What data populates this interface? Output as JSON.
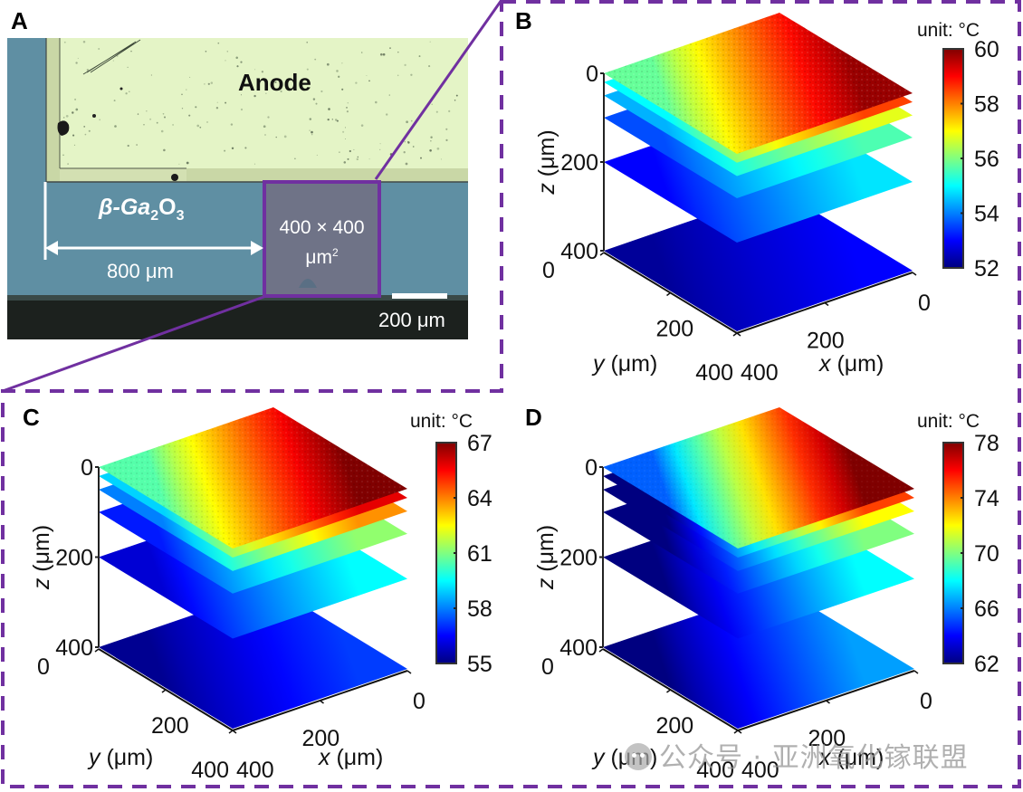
{
  "figure": {
    "panel_labels": [
      "A",
      "B",
      "C",
      "D"
    ],
    "accent_color": "#7030a0"
  },
  "panel_a": {
    "anode_label": "Anode",
    "material_label_prefix": "β-Ga",
    "material_sub1": "2",
    "material_mid": "O",
    "material_sub2": "3",
    "distance_label": "800 μm",
    "roi_label_line1": "400 × 400",
    "roi_label_line2": "μm",
    "roi_label_sup": "2",
    "scalebar_label": "200 μm",
    "colors": {
      "substrate": "#5f8fa3",
      "anode": "#e6f5c8",
      "anode_border": "#c9d7a6",
      "dark_edge": "#1a1f1c",
      "roi_fill": "#6f7387"
    }
  },
  "chart_data": [
    {
      "type": "heatmap",
      "panel": "B",
      "subtype": "3d-stacked-slices",
      "colormap": "jet",
      "colorbar_title": "unit: °C",
      "clim": [
        52,
        60
      ],
      "colorbar_ticks": [
        "60",
        "58",
        "56",
        "54",
        "52"
      ],
      "colorbar_tick_values": [
        60,
        58,
        56,
        54,
        52
      ],
      "xlabel": "x (μm)",
      "ylabel": "y (μm)",
      "zlabel": "z (μm)",
      "x_ticks": [
        "0",
        "200",
        "400"
      ],
      "y_ticks": [
        "0",
        "200",
        "400"
      ],
      "z_ticks": [
        "0",
        "200",
        "400"
      ],
      "xlim": [
        0,
        400
      ],
      "ylim": [
        0,
        400
      ],
      "zlim": [
        0,
        400
      ],
      "z_reversed": true,
      "noise": 0.35,
      "slices": [
        {
          "z": 0,
          "t_near": 55.8,
          "t_far": 59.8
        },
        {
          "z": 20,
          "t_near": 55.0,
          "t_far": 58.5
        },
        {
          "z": 50,
          "t_near": 54.4,
          "t_far": 56.8
        },
        {
          "z": 100,
          "t_near": 53.6,
          "t_far": 55.6
        },
        {
          "z": 200,
          "t_near": 53.0,
          "t_far": 54.8
        },
        {
          "z": 400,
          "t_near": 52.2,
          "t_far": 53.0
        }
      ]
    },
    {
      "type": "heatmap",
      "panel": "C",
      "subtype": "3d-stacked-slices",
      "colormap": "jet",
      "colorbar_title": "unit: °C",
      "clim": [
        55,
        67
      ],
      "colorbar_ticks": [
        "67",
        "64",
        "61",
        "58",
        "55"
      ],
      "colorbar_tick_values": [
        67,
        64,
        61,
        58,
        55
      ],
      "xlabel": "x (μm)",
      "ylabel": "y (μm)",
      "zlabel": "z (μm)",
      "x_ticks": [
        "0",
        "200",
        "400"
      ],
      "y_ticks": [
        "0",
        "200",
        "400"
      ],
      "z_ticks": [
        "0",
        "200",
        "400"
      ],
      "xlim": [
        0,
        400
      ],
      "ylim": [
        0,
        400
      ],
      "zlim": [
        0,
        400
      ],
      "z_reversed": true,
      "noise": 0.3,
      "slices": [
        {
          "z": 0,
          "t_near": 60.5,
          "t_far": 67.0
        },
        {
          "z": 20,
          "t_near": 59.0,
          "t_far": 65.8
        },
        {
          "z": 50,
          "t_near": 58.0,
          "t_far": 63.8
        },
        {
          "z": 100,
          "t_near": 56.8,
          "t_far": 61.2
        },
        {
          "z": 200,
          "t_near": 56.0,
          "t_far": 59.5
        },
        {
          "z": 400,
          "t_near": 55.2,
          "t_far": 57.2
        }
      ]
    },
    {
      "type": "heatmap",
      "panel": "D",
      "subtype": "3d-stacked-slices",
      "colormap": "jet",
      "colorbar_title": "unit: °C",
      "clim": [
        62,
        78
      ],
      "colorbar_ticks": [
        "78",
        "74",
        "70",
        "66",
        "62"
      ],
      "colorbar_tick_values": [
        78,
        74,
        70,
        66,
        62
      ],
      "xlabel": "x (μm)",
      "ylabel": "y (μm)",
      "zlabel": "z (μm)",
      "x_ticks": [
        "0",
        "200",
        "400"
      ],
      "y_ticks": [
        "0",
        "200",
        "400"
      ],
      "z_ticks": [
        "0",
        "200",
        "400"
      ],
      "xlim": [
        0,
        400
      ],
      "ylim": [
        0,
        400
      ],
      "zlim": [
        0,
        400
      ],
      "z_reversed": true,
      "noise": 0.15,
      "slices": [
        {
          "z": 0,
          "t_near": 65.5,
          "t_far": 78.0
        },
        {
          "z": 20,
          "t_near": 62.0,
          "t_far": 75.0
        },
        {
          "z": 50,
          "t_near": 62.0,
          "t_far": 72.0
        },
        {
          "z": 100,
          "t_near": 62.0,
          "t_far": 70.0
        },
        {
          "z": 200,
          "t_near": 62.0,
          "t_far": 68.0
        },
        {
          "z": 400,
          "t_near": 62.0,
          "t_far": 66.5
        }
      ]
    }
  ],
  "watermark": {
    "text": "公众号 · 亚洲氧化镓联盟"
  }
}
